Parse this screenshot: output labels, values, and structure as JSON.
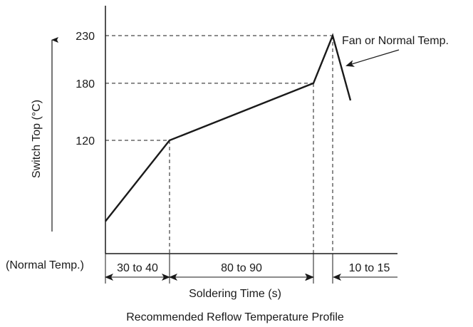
{
  "chart_data": {
    "type": "line",
    "caption": "Recommended Reflow Temperature Profile",
    "xlabel": "Soldering Time (s)",
    "ylabel": "Switch Top (°C)",
    "y_baseline_label": "(Normal Temp.)",
    "y_ticks": [
      230,
      180,
      120
    ],
    "series": [
      {
        "points": [
          {
            "x": 0,
            "y": 35
          },
          {
            "x": 35,
            "y": 120
          },
          {
            "x": 120,
            "y": 180
          },
          {
            "x": 130,
            "y": 230
          },
          {
            "x": 140,
            "y": 162
          }
        ]
      }
    ],
    "reference_lines": [
      {
        "y": 230,
        "x_end": 130
      },
      {
        "y": 180,
        "x_end": 120
      },
      {
        "y": 120,
        "x_end": 35
      }
    ],
    "intervals": [
      {
        "label": "30 to 40",
        "x_start": 0,
        "x_end": 35
      },
      {
        "label": "80 to 90",
        "x_start": 35,
        "x_end": 120
      },
      {
        "label": "10 to 15",
        "x_start": 130,
        "x_end": 160
      }
    ],
    "annotations": [
      {
        "text": "Fan or Normal Temp.",
        "points_to": {
          "x": 133,
          "y": 210
        }
      }
    ],
    "grid": false,
    "line_color": "#1a1a1a"
  }
}
